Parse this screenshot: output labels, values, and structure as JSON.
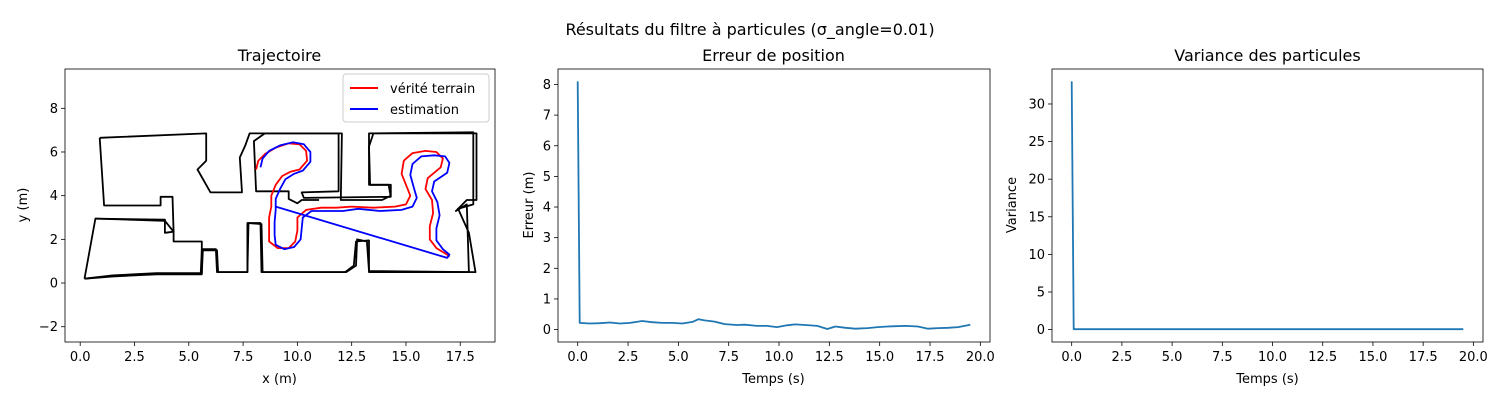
{
  "figure": {
    "suptitle": "Résultats du filtre à particules (σ_angle=0.01)"
  },
  "chart_data": [
    {
      "type": "line",
      "title": "Trajectoire",
      "xlabel": "x (m)",
      "ylabel": "y (m)",
      "xlim": [
        -0.7,
        19.1
      ],
      "ylim": [
        -2.7,
        9.8
      ],
      "xticks": [
        0.0,
        2.5,
        5.0,
        7.5,
        10.0,
        12.5,
        15.0,
        17.5
      ],
      "xtick_labels": [
        "0.0",
        "2.5",
        "5.0",
        "7.5",
        "10.0",
        "12.5",
        "15.0",
        "17.5"
      ],
      "yticks": [
        -2,
        0,
        2,
        4,
        6,
        8
      ],
      "ytick_labels": [
        "−2",
        "0",
        "2",
        "4",
        "6",
        "8"
      ],
      "grid": false,
      "legend": {
        "placement": "top-right"
      },
      "walls": [
        {
          "color": "#000000",
          "points": [
            [
              0.2,
              0.2
            ],
            [
              0.7,
              2.95
            ],
            [
              3.9,
              2.85
            ],
            [
              4.3,
              2.35
            ],
            [
              4.3,
              1.9
            ],
            [
              5.6,
              1.9
            ],
            [
              5.6,
              0.4
            ],
            [
              3.5,
              0.4
            ],
            [
              1.5,
              0.3
            ],
            [
              0.2,
              0.2
            ]
          ]
        },
        {
          "color": "#000000",
          "points": [
            [
              0.2,
              0.2
            ],
            [
              1.5,
              0.35
            ],
            [
              3.5,
              0.45
            ],
            [
              5.6,
              0.45
            ],
            [
              5.65,
              1.55
            ],
            [
              6.25,
              1.55
            ],
            [
              6.3,
              0.5
            ],
            [
              7.7,
              0.5
            ],
            [
              7.75,
              2.75
            ],
            [
              8.3,
              2.75
            ],
            [
              8.35,
              0.5
            ],
            [
              12.2,
              0.5
            ],
            [
              12.6,
              0.8
            ],
            [
              12.7,
              1.9
            ],
            [
              13.3,
              1.95
            ],
            [
              13.3,
              0.5
            ],
            [
              17.9,
              0.5
            ],
            [
              17.8,
              3.6
            ],
            [
              17.3,
              3.3
            ],
            [
              17.8,
              3.8
            ],
            [
              18.25,
              3.8
            ],
            [
              18.25,
              6.85
            ],
            [
              13.5,
              6.85
            ],
            [
              13.3,
              6.25
            ],
            [
              13.35,
              4.5
            ],
            [
              14.3,
              4.5
            ],
            [
              14.3,
              4.0
            ],
            [
              13.9,
              3.8
            ],
            [
              12.0,
              3.8
            ],
            [
              12.05,
              6.85
            ],
            [
              8.5,
              6.85
            ],
            [
              8.0,
              6.5
            ],
            [
              8.1,
              4.2
            ],
            [
              9.6,
              4.2
            ],
            [
              9.6,
              3.85
            ],
            [
              10.0,
              3.65
            ],
            [
              10.2,
              3.8
            ],
            [
              11.0,
              3.8
            ]
          ]
        },
        {
          "color": "#000000",
          "points": [
            [
              0.9,
              6.65
            ],
            [
              5.8,
              6.85
            ],
            [
              5.8,
              5.6
            ],
            [
              5.4,
              5.2
            ],
            [
              6.0,
              4.15
            ],
            [
              7.45,
              4.15
            ],
            [
              7.35,
              5.75
            ],
            [
              7.6,
              6.3
            ],
            [
              7.8,
              6.85
            ],
            [
              11.9,
              6.85
            ],
            [
              11.9,
              4.2
            ],
            [
              10.2,
              4.15
            ],
            [
              10.3,
              3.9
            ],
            [
              14.3,
              3.95
            ],
            [
              14.2,
              4.5
            ],
            [
              13.3,
              4.5
            ],
            [
              13.3,
              6.85
            ],
            [
              18.1,
              6.9
            ],
            [
              18.1,
              3.6
            ],
            [
              17.4,
              3.4
            ],
            [
              17.9,
              2.3
            ],
            [
              18.2,
              0.5
            ],
            [
              13.3,
              0.55
            ],
            [
              13.2,
              1.9
            ],
            [
              12.75,
              2.0
            ],
            [
              12.7,
              0.8
            ],
            [
              12.25,
              0.5
            ],
            [
              8.4,
              0.5
            ],
            [
              8.35,
              2.7
            ],
            [
              7.7,
              2.75
            ],
            [
              7.7,
              0.5
            ],
            [
              6.35,
              0.5
            ],
            [
              6.3,
              1.5
            ],
            [
              5.6,
              1.5
            ],
            [
              5.55,
              0.4
            ]
          ]
        },
        {
          "color": "#000000",
          "points": [
            [
              0.9,
              6.65
            ],
            [
              1.1,
              3.55
            ],
            [
              3.7,
              3.55
            ],
            [
              3.7,
              3.95
            ],
            [
              4.25,
              3.95
            ],
            [
              4.3,
              2.35
            ],
            [
              3.9,
              2.3
            ],
            [
              3.9,
              2.9
            ],
            [
              0.7,
              2.95
            ]
          ]
        }
      ],
      "series": [
        {
          "name": "vérité terrain",
          "color": "#ff0000",
          "points": [
            [
              8.1,
              5.2
            ],
            [
              8.2,
              5.6
            ],
            [
              8.5,
              5.9
            ],
            [
              9.0,
              6.2
            ],
            [
              9.6,
              6.4
            ],
            [
              10.1,
              6.35
            ],
            [
              10.4,
              6.05
            ],
            [
              10.45,
              5.6
            ],
            [
              10.1,
              5.2
            ],
            [
              9.7,
              5.1
            ],
            [
              9.3,
              4.9
            ],
            [
              9.0,
              4.5
            ],
            [
              8.8,
              4.0
            ],
            [
              8.8,
              3.5
            ],
            [
              8.7,
              3.0
            ],
            [
              8.7,
              2.4
            ],
            [
              8.7,
              1.9
            ],
            [
              9.1,
              1.6
            ],
            [
              9.6,
              1.6
            ],
            [
              9.9,
              1.9
            ],
            [
              10.0,
              2.4
            ],
            [
              10.0,
              3.0
            ],
            [
              10.4,
              3.35
            ],
            [
              11.1,
              3.45
            ],
            [
              11.8,
              3.45
            ],
            [
              12.5,
              3.5
            ],
            [
              13.5,
              3.45
            ],
            [
              14.5,
              3.5
            ],
            [
              15.0,
              3.6
            ],
            [
              15.2,
              4.0
            ],
            [
              15.0,
              4.5
            ],
            [
              14.8,
              5.0
            ],
            [
              14.9,
              5.6
            ],
            [
              15.3,
              5.95
            ],
            [
              15.9,
              6.05
            ],
            [
              16.4,
              6.0
            ],
            [
              16.7,
              5.7
            ],
            [
              16.6,
              5.3
            ],
            [
              16.0,
              4.8
            ],
            [
              15.9,
              4.3
            ],
            [
              16.2,
              3.8
            ],
            [
              16.25,
              3.2
            ],
            [
              16.1,
              2.6
            ],
            [
              16.1,
              2.0
            ],
            [
              16.4,
              1.6
            ],
            [
              16.9,
              1.3
            ],
            [
              17.0,
              1.2
            ]
          ]
        },
        {
          "name": "estimation",
          "color": "#0000ff",
          "points": [
            [
              8.3,
              5.3
            ],
            [
              8.4,
              5.7
            ],
            [
              8.7,
              6.05
            ],
            [
              9.2,
              6.3
            ],
            [
              9.8,
              6.45
            ],
            [
              10.3,
              6.35
            ],
            [
              10.6,
              6.0
            ],
            [
              10.6,
              5.55
            ],
            [
              10.25,
              5.15
            ],
            [
              9.85,
              5.0
            ],
            [
              9.45,
              4.75
            ],
            [
              9.2,
              4.3
            ],
            [
              9.0,
              3.85
            ],
            [
              9.0,
              3.35
            ],
            [
              8.95,
              2.8
            ],
            [
              8.95,
              2.2
            ],
            [
              9.0,
              1.75
            ],
            [
              9.4,
              1.55
            ],
            [
              9.85,
              1.65
            ],
            [
              10.15,
              2.0
            ],
            [
              10.2,
              2.5
            ],
            [
              10.25,
              3.0
            ],
            [
              10.65,
              3.3
            ],
            [
              11.4,
              3.3
            ],
            [
              12.1,
              3.3
            ],
            [
              12.8,
              3.4
            ],
            [
              13.8,
              3.3
            ],
            [
              14.8,
              3.35
            ],
            [
              15.3,
              3.5
            ],
            [
              15.5,
              3.9
            ],
            [
              15.35,
              4.4
            ],
            [
              15.2,
              4.95
            ],
            [
              15.3,
              5.45
            ],
            [
              15.7,
              5.8
            ],
            [
              16.3,
              5.85
            ],
            [
              16.8,
              5.8
            ],
            [
              17.0,
              5.5
            ],
            [
              16.9,
              5.05
            ],
            [
              16.3,
              4.65
            ],
            [
              16.2,
              4.2
            ],
            [
              16.45,
              3.7
            ],
            [
              16.55,
              3.1
            ],
            [
              16.4,
              2.5
            ],
            [
              16.4,
              1.95
            ],
            [
              16.7,
              1.55
            ],
            [
              17.0,
              1.3
            ],
            [
              16.9,
              1.15
            ],
            [
              9.0,
              3.5
            ]
          ]
        }
      ]
    },
    {
      "type": "line",
      "title": "Erreur de position",
      "xlabel": "Temps (s)",
      "ylabel": "Erreur (m)",
      "xlim": [
        -0.98,
        20.48
      ],
      "ylim": [
        -0.405,
        8.505
      ],
      "xticks": [
        0.0,
        2.5,
        5.0,
        7.5,
        10.0,
        12.5,
        15.0,
        17.5,
        20.0
      ],
      "xtick_labels": [
        "0.0",
        "2.5",
        "5.0",
        "7.5",
        "10.0",
        "12.5",
        "15.0",
        "17.5",
        "20.0"
      ],
      "yticks": [
        0,
        1,
        2,
        3,
        4,
        5,
        6,
        7,
        8
      ],
      "ytick_labels": [
        "0",
        "1",
        "2",
        "3",
        "4",
        "5",
        "6",
        "7",
        "8"
      ],
      "grid": false,
      "series": [
        {
          "name": "",
          "color": "#1f77b4",
          "x": [
            0.0,
            0.1,
            0.6,
            1.1,
            1.6,
            2.1,
            2.6,
            3.2,
            3.7,
            4.2,
            4.7,
            5.2,
            5.7,
            6.0,
            6.3,
            6.8,
            7.3,
            7.9,
            8.3,
            8.9,
            9.4,
            9.9,
            10.4,
            10.8,
            11.3,
            11.9,
            12.4,
            12.8,
            13.3,
            13.8,
            14.4,
            14.9,
            15.4,
            15.8,
            16.3,
            16.9,
            17.4,
            17.9,
            18.4,
            18.9,
            19.5
          ],
          "values": [
            8.1,
            0.22,
            0.2,
            0.21,
            0.23,
            0.2,
            0.22,
            0.28,
            0.24,
            0.22,
            0.22,
            0.2,
            0.25,
            0.34,
            0.3,
            0.26,
            0.18,
            0.15,
            0.16,
            0.12,
            0.12,
            0.08,
            0.14,
            0.17,
            0.15,
            0.12,
            0.02,
            0.1,
            0.06,
            0.03,
            0.05,
            0.08,
            0.1,
            0.11,
            0.12,
            0.1,
            0.03,
            0.05,
            0.06,
            0.08,
            0.16
          ]
        }
      ]
    },
    {
      "type": "line",
      "title": "Variance des particules",
      "xlabel": "Temps (s)",
      "ylabel": "Variance",
      "xlim": [
        -0.98,
        20.48
      ],
      "ylim": [
        -1.65,
        34.65
      ],
      "xticks": [
        0.0,
        2.5,
        5.0,
        7.5,
        10.0,
        12.5,
        15.0,
        17.5,
        20.0
      ],
      "xtick_labels": [
        "0.0",
        "2.5",
        "5.0",
        "7.5",
        "10.0",
        "12.5",
        "15.0",
        "17.5",
        "20.0"
      ],
      "yticks": [
        0,
        5,
        10,
        15,
        20,
        25,
        30
      ],
      "ytick_labels": [
        "0",
        "5",
        "10",
        "15",
        "20",
        "25",
        "30"
      ],
      "grid": false,
      "series": [
        {
          "name": "",
          "color": "#1f77b4",
          "x": [
            0.0,
            0.1,
            19.5
          ],
          "values": [
            33.0,
            0.05,
            0.05
          ]
        }
      ]
    }
  ]
}
